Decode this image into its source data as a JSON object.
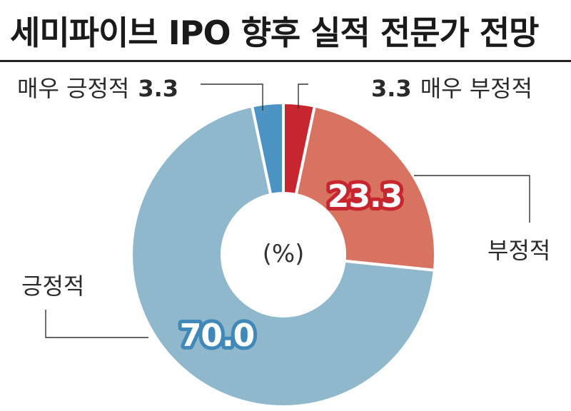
{
  "chart_data": {
    "type": "pie",
    "donut": true,
    "title": "세미파이브 IPO 향후 실적 전문가 전망",
    "unit": "(%)",
    "slices": [
      {
        "label": "매우 부정적",
        "value": 3.3,
        "color": "#c8262f"
      },
      {
        "label": "부정적",
        "value": 23.3,
        "color": "#d97361"
      },
      {
        "label": "긍정적",
        "value": 70.0,
        "color": "#8fb8cc"
      },
      {
        "label": "매우 긍정적",
        "value": 3.3,
        "color": "#4b93c2"
      }
    ],
    "data_labels": {
      "negative": "23.3",
      "positive": "70.0"
    },
    "legend_labels": {
      "very_positive_text": "매우 긍정적",
      "very_positive_value": "3.3",
      "very_negative_value": "3.3",
      "very_negative_text": "매우 부정적",
      "negative_text": "부정적",
      "positive_text": "긍정적"
    },
    "data_label_outline_colors": {
      "negative": "#c8262f",
      "positive": "#3f88b8"
    }
  }
}
